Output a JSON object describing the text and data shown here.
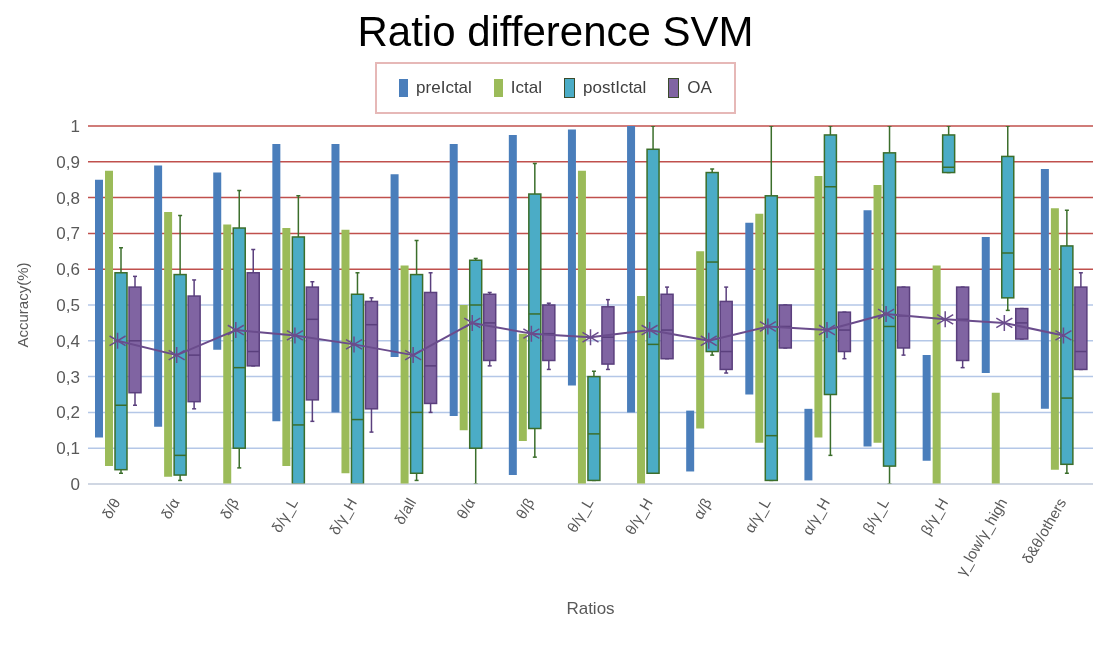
{
  "chart_data": {
    "type": "box",
    "title": "Ratio difference SVM",
    "xlabel": "Ratios",
    "ylabel": "Accuracy(%)",
    "categories": [
      "δ/θ",
      "δ/α",
      "δ/β",
      "δ/γ_L",
      "δ/γ_H",
      "δ/all",
      "θ/α",
      "θ/β",
      "θ/γ_L",
      "θ/γ_H",
      "α/β",
      "α/γ_L",
      "α/γ_H",
      "β/γ_L",
      "β/γ_H",
      "γ_low/γ_high",
      "δ&θ/others"
    ],
    "ylim": [
      0,
      1
    ],
    "yticks": [
      {
        "value": 0,
        "label": "0"
      },
      {
        "value": 0.1,
        "label": "0,1"
      },
      {
        "value": 0.2,
        "label": "0,2"
      },
      {
        "value": 0.3,
        "label": "0,3"
      },
      {
        "value": 0.4,
        "label": "0,4"
      },
      {
        "value": 0.5,
        "label": "0,5"
      },
      {
        "value": 0.6,
        "label": "0,6"
      },
      {
        "value": 0.7,
        "label": "0,7"
      },
      {
        "value": 0.8,
        "label": "0,8"
      },
      {
        "value": 0.9,
        "label": "0,9"
      },
      {
        "value": 1,
        "label": "1"
      }
    ],
    "grid": "y",
    "legend": "top",
    "series": [
      {
        "name": "preIctal",
        "type": "bar",
        "color": "#4a7ebb",
        "base": [
          0.13,
          0.16,
          0.375,
          0.175,
          0.2,
          0.355,
          0.19,
          0.025,
          0.275,
          0.2,
          0.035,
          0.25,
          0.01,
          0.105,
          0.065,
          0.31,
          0.21
        ],
        "values": [
          0.72,
          0.73,
          0.495,
          0.775,
          0.75,
          0.51,
          0.76,
          0.95,
          0.715,
          0.8,
          0.17,
          0.48,
          0.2,
          0.66,
          0.295,
          0.38,
          0.67
        ]
      },
      {
        "name": "Ictal",
        "type": "bar",
        "color": "#9bbb59",
        "base": [
          0.05,
          0.02,
          0,
          0.05,
          0.03,
          0,
          0.15,
          0.12,
          0,
          0,
          0.155,
          0.115,
          0.13,
          0.115,
          0,
          0,
          0.04
        ],
        "values": [
          0.825,
          0.74,
          0.725,
          0.665,
          0.68,
          0.61,
          0.35,
          0.3,
          0.875,
          0.525,
          0.495,
          0.64,
          0.73,
          0.72,
          0.61,
          0.255,
          0.73
        ]
      },
      {
        "name": "postIctal",
        "color": "#4bacc6",
        "boxes": [
          {
            "low": 0.03,
            "q1": 0.04,
            "median": 0.22,
            "q3": 0.59,
            "high": 0.66
          },
          {
            "low": 0.01,
            "q1": 0.025,
            "median": 0.08,
            "q3": 0.585,
            "high": 0.75
          },
          {
            "low": 0.045,
            "q1": 0.1,
            "median": 0.325,
            "q3": 0.715,
            "high": 0.82
          },
          {
            "low": 0,
            "q1": 0,
            "median": 0.165,
            "q3": 0.69,
            "high": 0.805
          },
          {
            "low": 0,
            "q1": 0,
            "median": 0.18,
            "q3": 0.53,
            "high": 0.59
          },
          {
            "low": 0.01,
            "q1": 0.03,
            "median": 0.2,
            "q3": 0.585,
            "high": 0.68
          },
          {
            "low": 0,
            "q1": 0.1,
            "median": 0.5,
            "q3": 0.625,
            "high": 0.63
          },
          {
            "low": 0.075,
            "q1": 0.155,
            "median": 0.475,
            "q3": 0.81,
            "high": 0.895
          },
          {
            "low": 0.01,
            "q1": 0.01,
            "median": 0.14,
            "q3": 0.3,
            "high": 0.315
          },
          {
            "low": 0.03,
            "q1": 0.03,
            "median": 0.39,
            "q3": 0.935,
            "high": 1
          },
          {
            "low": 0.36,
            "q1": 0.37,
            "median": 0.62,
            "q3": 0.87,
            "high": 0.88
          },
          {
            "low": 0.01,
            "q1": 0.01,
            "median": 0.135,
            "q3": 0.805,
            "high": 1
          },
          {
            "low": 0.08,
            "q1": 0.25,
            "median": 0.83,
            "q3": 0.975,
            "high": 1
          },
          {
            "low": 0,
            "q1": 0.05,
            "median": 0.44,
            "q3": 0.925,
            "high": 1
          },
          {
            "low": 0.87,
            "q1": 0.87,
            "median": 0.885,
            "q3": 0.975,
            "high": 1
          },
          {
            "low": 0.485,
            "q1": 0.52,
            "median": 0.645,
            "q3": 0.915,
            "high": 1
          },
          {
            "low": 0.03,
            "q1": 0.055,
            "median": 0.24,
            "q3": 0.665,
            "high": 0.765
          }
        ]
      },
      {
        "name": "OA",
        "color": "#8064a2",
        "boxes": [
          {
            "low": 0.22,
            "q1": 0.255,
            "median": 0.4,
            "q3": 0.55,
            "high": 0.58
          },
          {
            "low": 0.21,
            "q1": 0.23,
            "median": 0.36,
            "q3": 0.525,
            "high": 0.57
          },
          {
            "low": 0.33,
            "q1": 0.33,
            "median": 0.37,
            "q3": 0.59,
            "high": 0.655
          },
          {
            "low": 0.175,
            "q1": 0.235,
            "median": 0.46,
            "q3": 0.55,
            "high": 0.565
          },
          {
            "low": 0.145,
            "q1": 0.21,
            "median": 0.445,
            "q3": 0.51,
            "high": 0.52
          },
          {
            "low": 0.2,
            "q1": 0.225,
            "median": 0.33,
            "q3": 0.535,
            "high": 0.59
          },
          {
            "low": 0.33,
            "q1": 0.345,
            "median": 0.45,
            "q3": 0.53,
            "high": 0.535
          },
          {
            "low": 0.32,
            "q1": 0.345,
            "median": 0.42,
            "q3": 0.5,
            "high": 0.505
          },
          {
            "low": 0.32,
            "q1": 0.335,
            "median": 0.41,
            "q3": 0.495,
            "high": 0.515
          },
          {
            "low": 0.35,
            "q1": 0.35,
            "median": 0.43,
            "q3": 0.53,
            "high": 0.55
          },
          {
            "low": 0.31,
            "q1": 0.32,
            "median": 0.37,
            "q3": 0.51,
            "high": 0.55
          },
          {
            "low": 0.38,
            "q1": 0.38,
            "median": 0.44,
            "q3": 0.5,
            "high": 0.5
          },
          {
            "low": 0.35,
            "q1": 0.37,
            "median": 0.43,
            "q3": 0.48,
            "high": 0.48
          },
          {
            "low": 0.36,
            "q1": 0.38,
            "median": 0.47,
            "q3": 0.55,
            "high": 0.55
          },
          {
            "low": 0.325,
            "q1": 0.345,
            "median": 0.46,
            "q3": 0.55,
            "high": 0.55
          },
          {
            "low": 0.405,
            "q1": 0.405,
            "median": 0.45,
            "q3": 0.49,
            "high": 0.49
          },
          {
            "low": 0.32,
            "q1": 0.32,
            "median": 0.37,
            "q3": 0.55,
            "high": 0.59
          }
        ]
      },
      {
        "type": "line",
        "color": "#6a4c8c",
        "marker": "cross",
        "values": [
          0.4,
          0.36,
          0.43,
          0.415,
          0.39,
          0.36,
          0.45,
          0.42,
          0.41,
          0.43,
          0.4,
          0.44,
          0.43,
          0.475,
          0.46,
          0.45,
          0.415
        ]
      }
    ]
  }
}
